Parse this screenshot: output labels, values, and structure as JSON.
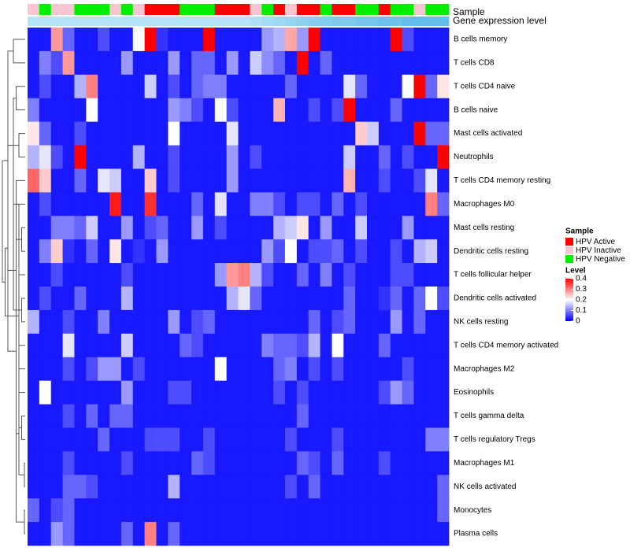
{
  "chart_data": {
    "type": "heatmap",
    "title": "",
    "xlabel": "",
    "ylabel": "",
    "annotation_labels": {
      "sample": "Sample",
      "expression": "Gene expression level"
    },
    "rows": [
      "B cells memory",
      "T cells CD8",
      "T cells CD4 naive",
      "B cells naive",
      "Mast cells activated",
      "Neutrophils",
      "T cells CD4 memory resting",
      "Macrophages M0",
      "Mast cells resting",
      "Dendritic cells resting",
      "T cells follicular helper",
      "Dendritic cells activated",
      "NK cells resting",
      "T cells CD4 memory activated",
      "Macrophages M2",
      "Eosinophils",
      "T cells gamma delta",
      "T cells regulatory  Tregs",
      "Macrophages M1",
      "NK cells activated",
      "Monocytes",
      "Plasma cells"
    ],
    "sample_groups": [
      "Inactive",
      "Negative",
      "Inactive",
      "Inactive",
      "Negative",
      "Negative",
      "Negative",
      "Inactive",
      "Negative",
      "Inactive",
      "Active",
      "Active",
      "Active",
      "Negative",
      "Negative",
      "Negative",
      "Active",
      "Active",
      "Active",
      "Inactive",
      "Negative",
      "Active",
      "Inactive",
      "Active",
      "Active",
      "Negative",
      "Active",
      "Active",
      "Negative",
      "Negative",
      "Active",
      "Negative",
      "Negative",
      "Inactive",
      "Negative",
      "Negative"
    ],
    "expression_level": [
      0,
      0,
      0,
      0,
      0,
      0,
      0,
      0,
      0,
      0,
      0,
      0,
      0,
      0,
      0,
      0,
      0,
      0,
      0,
      0.1,
      0.2,
      0.3,
      0.4,
      0.5,
      0.6,
      0.6,
      0.7,
      0.7,
      0.8,
      0.8,
      0.9,
      0.9,
      1,
      1,
      1,
      1
    ],
    "values": [
      [
        0.02,
        0.02,
        0.28,
        0.08,
        0.02,
        0.02,
        0.06,
        0.02,
        0.02,
        0.2,
        0.4,
        0.04,
        0.02,
        0.02,
        0.02,
        0.4,
        0.02,
        0.02,
        0.02,
        0.02,
        0.12,
        0.14,
        0.27,
        0.12,
        0.4,
        0.02,
        0.02,
        0.02,
        0.02,
        0.02,
        0.02,
        0.4,
        0.06,
        0.02,
        0.02,
        0.02
      ],
      [
        0.02,
        0.1,
        0.06,
        0.28,
        0.02,
        0.02,
        0.02,
        0.02,
        0.12,
        0.02,
        0.02,
        0.02,
        0.12,
        0.02,
        0.08,
        0.08,
        0.02,
        0.12,
        0.02,
        0.16,
        0.11,
        0.08,
        0.02,
        0.4,
        0.02,
        0.08,
        0.02,
        0.02,
        0.02,
        0.02,
        0.02,
        0.02,
        0.02,
        0.02,
        0.02,
        0.02
      ],
      [
        0.02,
        0.06,
        0.02,
        0.02,
        0.14,
        0.3,
        0.02,
        0.02,
        0.02,
        0.02,
        0.16,
        0.02,
        0.06,
        0.02,
        0.08,
        0.1,
        0.1,
        0.02,
        0.02,
        0.02,
        0.02,
        0.02,
        0.08,
        0.02,
        0.02,
        0.02,
        0.02,
        0.18,
        0.08,
        0.02,
        0.02,
        0.02,
        0.2,
        0.4,
        0.08,
        0.22
      ],
      [
        0.1,
        0.02,
        0.02,
        0.02,
        0.02,
        0.2,
        0.02,
        0.02,
        0.02,
        0.02,
        0.02,
        0.02,
        0.12,
        0.1,
        0.06,
        0.02,
        0.2,
        0.06,
        0.02,
        0.02,
        0.02,
        0.26,
        0.02,
        0.02,
        0.06,
        0.02,
        0.06,
        0.4,
        0.02,
        0.02,
        0.02,
        0.08,
        0.02,
        0.02,
        0.02,
        0.02
      ],
      [
        0.22,
        0.08,
        0.02,
        0.02,
        0.06,
        0.02,
        0.02,
        0.02,
        0.02,
        0.02,
        0.02,
        0.02,
        0.2,
        0.02,
        0.02,
        0.02,
        0.02,
        0.18,
        0.02,
        0.02,
        0.02,
        0.02,
        0.02,
        0.02,
        0.02,
        0.02,
        0.02,
        0.02,
        0.24,
        0.16,
        0.02,
        0.02,
        0.02,
        0.4,
        0.08,
        0.08
      ],
      [
        0.14,
        0.18,
        0.06,
        0.02,
        0.4,
        0.02,
        0.02,
        0.02,
        0.02,
        0.14,
        0.02,
        0.02,
        0.06,
        0.02,
        0.02,
        0.02,
        0.02,
        0.12,
        0.02,
        0.06,
        0.02,
        0.02,
        0.02,
        0.02,
        0.02,
        0.02,
        0.02,
        0.16,
        0.02,
        0.02,
        0.08,
        0.02,
        0.06,
        0.02,
        0.02,
        0.4
      ],
      [
        0.32,
        0.24,
        0.02,
        0.02,
        0.08,
        0.02,
        0.18,
        0.16,
        0.02,
        0.02,
        0.24,
        0.02,
        0.06,
        0.02,
        0.02,
        0.02,
        0.02,
        0.12,
        0.02,
        0.02,
        0.02,
        0.02,
        0.02,
        0.02,
        0.02,
        0.02,
        0.02,
        0.26,
        0.02,
        0.02,
        0.06,
        0.02,
        0.02,
        0.06,
        0.18,
        0.02
      ],
      [
        0.02,
        0.06,
        0.02,
        0.02,
        0.02,
        0.02,
        0.02,
        0.38,
        0.02,
        0.02,
        0.36,
        0.02,
        0.02,
        0.02,
        0.08,
        0.02,
        0.18,
        0.02,
        0.02,
        0.1,
        0.1,
        0.06,
        0.02,
        0.06,
        0.06,
        0.02,
        0.08,
        0.02,
        0.06,
        0.02,
        0.02,
        0.02,
        0.02,
        0.02,
        0.3,
        0.08
      ],
      [
        0.02,
        0.02,
        0.1,
        0.1,
        0.08,
        0.16,
        0.02,
        0.02,
        0.12,
        0.02,
        0.06,
        0.08,
        0.02,
        0.02,
        0.12,
        0.02,
        0.06,
        0.02,
        0.02,
        0.02,
        0.02,
        0.14,
        0.16,
        0.22,
        0.02,
        0.12,
        0.02,
        0.02,
        0.16,
        0.02,
        0.02,
        0.02,
        0.12,
        0.02,
        0.02,
        0.02
      ],
      [
        0.02,
        0.1,
        0.24,
        0.04,
        0.02,
        0.08,
        0.02,
        0.22,
        0.02,
        0.04,
        0.02,
        0.12,
        0.02,
        0.02,
        0.02,
        0.02,
        0.02,
        0.02,
        0.02,
        0.02,
        0.12,
        0.06,
        0.2,
        0.02,
        0.06,
        0.06,
        0.08,
        0.02,
        0.06,
        0.02,
        0.02,
        0.06,
        0.02,
        0.14,
        0.16,
        0.02
      ],
      [
        0.02,
        0.02,
        0.06,
        0.02,
        0.02,
        0.02,
        0.02,
        0.02,
        0.06,
        0.02,
        0.02,
        0.02,
        0.02,
        0.02,
        0.02,
        0.02,
        0.12,
        0.28,
        0.3,
        0.14,
        0.06,
        0.02,
        0.02,
        0.08,
        0.02,
        0.1,
        0.02,
        0.06,
        0.02,
        0.02,
        0.02,
        0.06,
        0.06,
        0.02,
        0.02,
        0.02
      ],
      [
        0.02,
        0.06,
        0.02,
        0.02,
        0.08,
        0.02,
        0.02,
        0.02,
        0.14,
        0.02,
        0.02,
        0.02,
        0.02,
        0.02,
        0.02,
        0.02,
        0.02,
        0.14,
        0.18,
        0.08,
        0.02,
        0.02,
        0.02,
        0.02,
        0.02,
        0.02,
        0.02,
        0.08,
        0.02,
        0.02,
        0.04,
        0.08,
        0.02,
        0.08,
        0.2,
        0.06
      ],
      [
        0.14,
        0.02,
        0.02,
        0.06,
        0.02,
        0.02,
        0.1,
        0.02,
        0.02,
        0.02,
        0.02,
        0.02,
        0.12,
        0.02,
        0.06,
        0.08,
        0.02,
        0.02,
        0.02,
        0.02,
        0.02,
        0.02,
        0.02,
        0.02,
        0.08,
        0.02,
        0.06,
        0.08,
        0.02,
        0.02,
        0.02,
        0.12,
        0.02,
        0.08,
        0.02,
        0.02
      ],
      [
        0.02,
        0.02,
        0.02,
        0.18,
        0.02,
        0.02,
        0.02,
        0.02,
        0.16,
        0.02,
        0.02,
        0.02,
        0.02,
        0.08,
        0.06,
        0.02,
        0.02,
        0.02,
        0.02,
        0.02,
        0.1,
        0.08,
        0.08,
        0.06,
        0.14,
        0.02,
        0.2,
        0.02,
        0.02,
        0.02,
        0.08,
        0.02,
        0.02,
        0.02,
        0.02,
        0.02
      ],
      [
        0.02,
        0.02,
        0.02,
        0.06,
        0.02,
        0.06,
        0.12,
        0.12,
        0.02,
        0.06,
        0.02,
        0.02,
        0.02,
        0.02,
        0.02,
        0.02,
        0.2,
        0.02,
        0.02,
        0.02,
        0.02,
        0.08,
        0.1,
        0.02,
        0.06,
        0.02,
        0.06,
        0.02,
        0.02,
        0.02,
        0.02,
        0.02,
        0.06,
        0.02,
        0.02,
        0.02
      ],
      [
        0.02,
        0.2,
        0.02,
        0.02,
        0.02,
        0.02,
        0.02,
        0.02,
        0.12,
        0.02,
        0.02,
        0.02,
        0.06,
        0.06,
        0.02,
        0.02,
        0.02,
        0.02,
        0.02,
        0.02,
        0.02,
        0.06,
        0.02,
        0.06,
        0.02,
        0.02,
        0.02,
        0.02,
        0.02,
        0.02,
        0.06,
        0.12,
        0.08,
        0.02,
        0.02,
        0.02
      ],
      [
        0.02,
        0.02,
        0.02,
        0.06,
        0.02,
        0.08,
        0.02,
        0.08,
        0.08,
        0.02,
        0.02,
        0.02,
        0.02,
        0.02,
        0.02,
        0.02,
        0.02,
        0.02,
        0.02,
        0.02,
        0.02,
        0.02,
        0.02,
        0.08,
        0.02,
        0.02,
        0.02,
        0.02,
        0.02,
        0.02,
        0.02,
        0.02,
        0.02,
        0.02,
        0.02,
        0.02
      ],
      [
        0.02,
        0.02,
        0.02,
        0.02,
        0.02,
        0.02,
        0.08,
        0.02,
        0.02,
        0.02,
        0.06,
        0.06,
        0.06,
        0.02,
        0.02,
        0.06,
        0.02,
        0.02,
        0.02,
        0.02,
        0.02,
        0.02,
        0.06,
        0.02,
        0.02,
        0.02,
        0.06,
        0.02,
        0.02,
        0.02,
        0.02,
        0.02,
        0.02,
        0.02,
        0.1,
        0.1
      ],
      [
        0.02,
        0.02,
        0.02,
        0.06,
        0.02,
        0.02,
        0.02,
        0.02,
        0.06,
        0.02,
        0.02,
        0.02,
        0.02,
        0.02,
        0.08,
        0.06,
        0.02,
        0.02,
        0.02,
        0.02,
        0.02,
        0.02,
        0.02,
        0.08,
        0.06,
        0.02,
        0.08,
        0.02,
        0.02,
        0.02,
        0.06,
        0.02,
        0.02,
        0.02,
        0.02,
        0.02
      ],
      [
        0.02,
        0.02,
        0.02,
        0.08,
        0.08,
        0.06,
        0.02,
        0.02,
        0.02,
        0.02,
        0.02,
        0.02,
        0.14,
        0.02,
        0.02,
        0.02,
        0.02,
        0.02,
        0.02,
        0.02,
        0.02,
        0.02,
        0.06,
        0.02,
        0.08,
        0.02,
        0.02,
        0.02,
        0.02,
        0.02,
        0.02,
        0.02,
        0.02,
        0.02,
        0.02,
        0.08
      ],
      [
        0.08,
        0.02,
        0.06,
        0.08,
        0.02,
        0.02,
        0.02,
        0.02,
        0.02,
        0.02,
        0.02,
        0.02,
        0.02,
        0.02,
        0.02,
        0.02,
        0.02,
        0.02,
        0.02,
        0.02,
        0.02,
        0.02,
        0.02,
        0.02,
        0.02,
        0.02,
        0.02,
        0.02,
        0.02,
        0.02,
        0.02,
        0.02,
        0.02,
        0.02,
        0.02,
        0.08
      ],
      [
        0.02,
        0.02,
        0.12,
        0.08,
        0.02,
        0.02,
        0.02,
        0.02,
        0.08,
        0.02,
        0.3,
        0.02,
        0.08,
        0.02,
        0.02,
        0.02,
        0.02,
        0.02,
        0.02,
        0.02,
        0.02,
        0.02,
        0.02,
        0.02,
        0.02,
        0.02,
        0.02,
        0.02,
        0.02,
        0.02,
        0.02,
        0.02,
        0.02,
        0.02,
        0.02,
        0.02
      ]
    ],
    "colorscale": {
      "min": 0,
      "max": 0.4,
      "low": "#0000ff",
      "mid": "#ffffff",
      "high": "#ff0000"
    },
    "dendrogram": {
      "leaf_x": 10,
      "merges": [
        {
          "a": 20,
          "b": 21,
          "h": 8
        },
        {
          "a": 18,
          "b": 19,
          "h": 8
        },
        {
          "a": 16,
          "b": 17,
          "h": 7
        },
        {
          "a": 13,
          "b": 14,
          "h": 6
        },
        {
          "a": 11,
          "b": 12,
          "h": 7
        },
        {
          "a": 8,
          "b": 9,
          "h": 7
        },
        {
          "a": 4,
          "b": 5,
          "h": 6
        },
        {
          "a": 2,
          "b": 3,
          "h": 5
        },
        {
          "a": 0,
          "b": 1,
          "h": 4
        },
        {
          "a": 22,
          "b": 6,
          "h": 5
        },
        {
          "a": 26,
          "b": 29,
          "h": 4
        },
        {
          "a": 23,
          "b": 15,
          "h": 6
        },
        {
          "a": 32,
          "b": 24,
          "h": 6
        },
        {
          "a": 33,
          "b": 27,
          "h": 5
        },
        {
          "a": 25,
          "b": 10,
          "h": 6
        },
        {
          "a": 35,
          "b": 7,
          "h": 5
        },
        {
          "a": 34,
          "b": 36,
          "h": 3
        },
        {
          "a": 28,
          "b": 31,
          "h": 2
        },
        {
          "a": 30,
          "b": 37,
          "h": 2
        },
        {
          "a": 38,
          "b": 39,
          "h": 1
        },
        {
          "a": 40,
          "b": 41,
          "h": 0
        }
      ]
    },
    "legend": {
      "placement": "right",
      "sample_title": "Sample",
      "sample_items": [
        {
          "key": "Active",
          "label": "HPV Active",
          "color": "#ff0000"
        },
        {
          "key": "Inactive",
          "label": "HPV Inactive",
          "color": "#f6c5d0"
        },
        {
          "key": "Negative",
          "label": "HPV Negative",
          "color": "#00ee00"
        }
      ],
      "level_title": "Level",
      "level_ticks": [
        "0.4",
        "0.3",
        "0.2",
        "0.1",
        "0"
      ]
    },
    "expression_colors": {
      "low": "#b6e4f7",
      "high": "#63bee9"
    },
    "grid": false
  }
}
